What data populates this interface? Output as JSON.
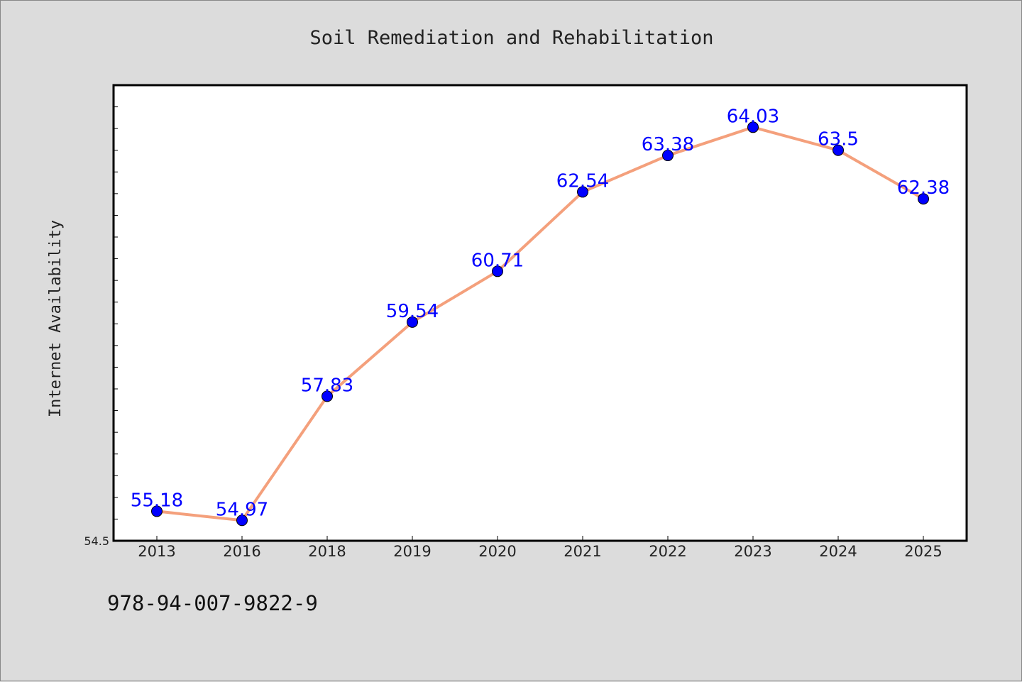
{
  "chart_data": {
    "type": "line",
    "title": "Soil Remediation and Rehabilitation",
    "xlabel": "",
    "ylabel": "Internet Availability",
    "categories": [
      "2013",
      "2016",
      "2018",
      "2019",
      "2020",
      "2021",
      "2022",
      "2023",
      "2024",
      "2025"
    ],
    "series": [
      {
        "values": [
          55.18,
          54.97,
          57.83,
          59.54,
          60.71,
          62.54,
          63.38,
          64.03,
          63.5,
          62.38
        ],
        "line_color": "#f4a07c",
        "marker_color": "#0000ff"
      }
    ],
    "ylim": [
      54.5,
      65.0
    ],
    "yticks_labeled": [
      "54.5"
    ],
    "data_labels": true,
    "grid": false,
    "legend": "none"
  },
  "footer_text": "978-94-007-9822-9",
  "colors": {
    "background": "#dcdcdc",
    "plot_background": "#ffffff",
    "line": "#f4a07c",
    "marker": "#0000ff",
    "data_label": "#0000ff"
  }
}
